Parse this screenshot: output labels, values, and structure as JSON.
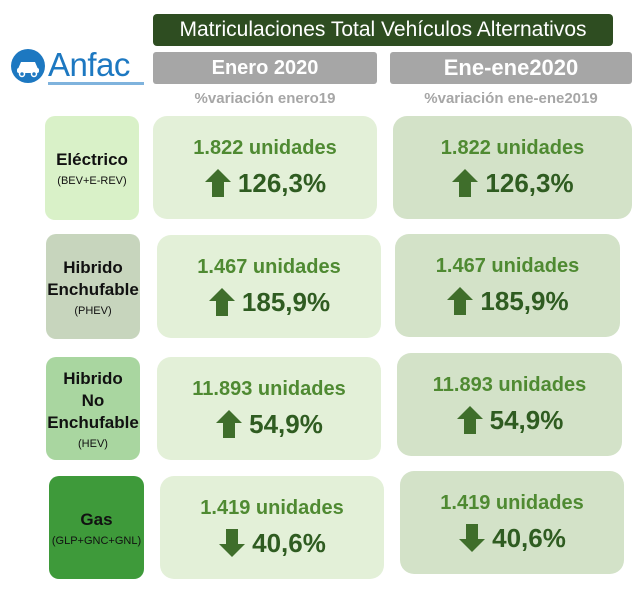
{
  "title": "Matriculaciones Total Vehículos Alternativos",
  "logo": {
    "text": "Anfac",
    "icon": "car-icon"
  },
  "columns": [
    {
      "header": "Enero 2020",
      "sub": "%variación enero19"
    },
    {
      "header": "Ene-ene2020",
      "sub": "%variación ene-ene2019"
    }
  ],
  "colors": {
    "title_bg": "#2e4d21",
    "header_bg": "#a6a6a6",
    "units_text": "#4f8a32",
    "percent_text": "#2f5c21",
    "arrow": "#3f6e2b",
    "card_col1": "#e3f0d8",
    "card_col2": "#d3e2c8"
  },
  "rows": [
    {
      "name": [
        "Eléctrico"
      ],
      "sub": "(BEV+E-REV)",
      "label_color": "#d9f1c8",
      "cells": [
        {
          "units": "1.822 unidades",
          "percent": "126,3%",
          "direction": "up"
        },
        {
          "units": "1.822 unidades",
          "percent": "126,3%",
          "direction": "up"
        }
      ]
    },
    {
      "name": [
        "Hibrido",
        "Enchufable"
      ],
      "sub": "(PHEV)",
      "label_color": "#c7d5bd",
      "cells": [
        {
          "units": "1.467 unidades",
          "percent": "185,9%",
          "direction": "up"
        },
        {
          "units": "1.467 unidades",
          "percent": "185,9%",
          "direction": "up"
        }
      ]
    },
    {
      "name": [
        "Hibrido",
        "No",
        "Enchufable"
      ],
      "sub": "(HEV)",
      "label_color": "#a9d6a0",
      "cells": [
        {
          "units": "11.893 unidades",
          "percent": "54,9%",
          "direction": "up"
        },
        {
          "units": "11.893 unidades",
          "percent": "54,9%",
          "direction": "up"
        }
      ]
    },
    {
      "name": [
        "Gas"
      ],
      "sub": "(GLP+GNC+GNL)",
      "label_color": "#3e9a3a",
      "cells": [
        {
          "units": "1.419 unidades",
          "percent": "40,6%",
          "direction": "down"
        },
        {
          "units": "1.419 unidades",
          "percent": "40,6%",
          "direction": "down"
        }
      ]
    }
  ]
}
